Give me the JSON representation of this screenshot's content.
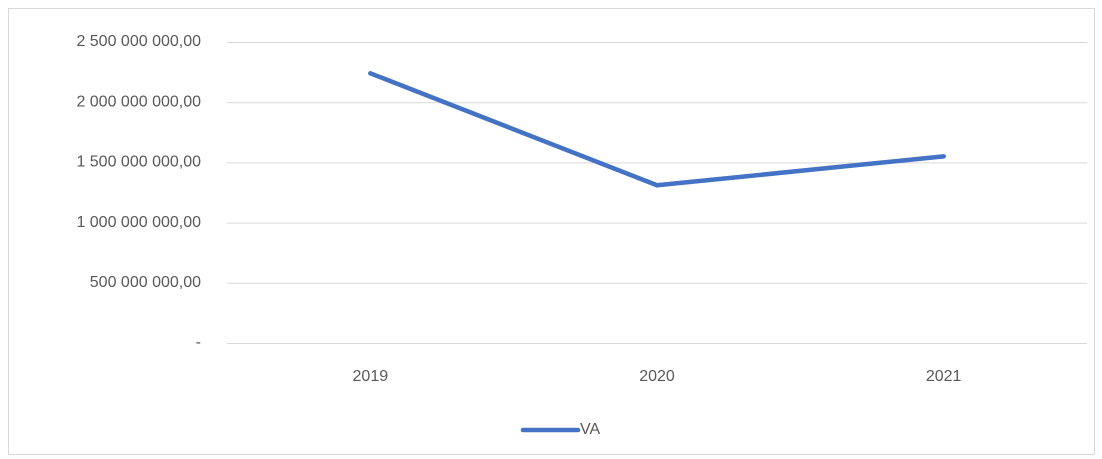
{
  "chart_data": {
    "type": "line",
    "categories": [
      "2019",
      "2020",
      "2021"
    ],
    "series": [
      {
        "name": "VA",
        "color": "#4472c4",
        "values": [
          2240000000,
          1310000000,
          1550000000
        ]
      }
    ],
    "ylim": [
      0,
      2500000000
    ],
    "yticks": [
      {
        "value": 0,
        "label": "-"
      },
      {
        "value": 500000000,
        "label": "500 000 000,00"
      },
      {
        "value": 1000000000,
        "label": "1 000 000 000,00"
      },
      {
        "value": 1500000000,
        "label": "1 500 000 000,00"
      },
      {
        "value": 2000000000,
        "label": "2 000 000 000,00"
      },
      {
        "value": 2500000000,
        "label": "2 500 000 000,00"
      }
    ],
    "grid": true,
    "legend": "bottom"
  }
}
